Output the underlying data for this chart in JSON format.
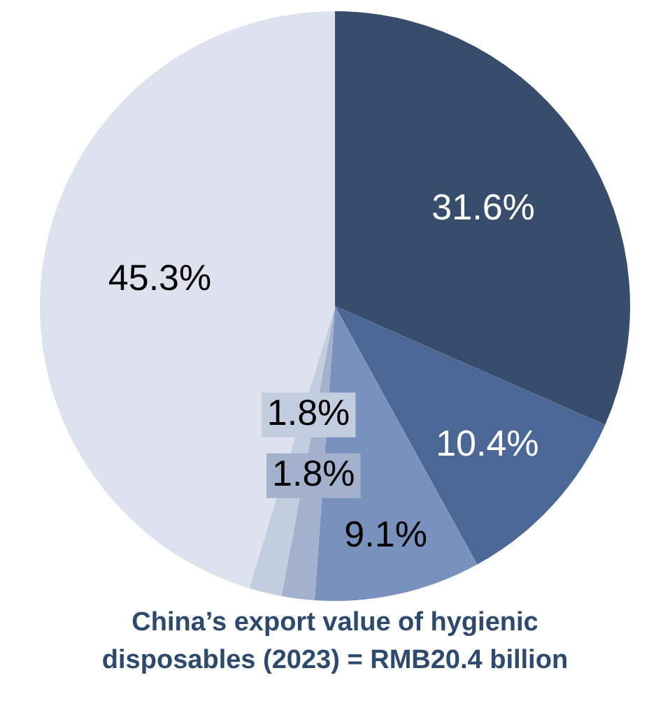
{
  "chart_data": {
    "type": "pie",
    "title": "China’s export value of hygienic disposables (2023) = RMB20.4 billion",
    "categories": [
      null,
      null,
      null,
      null,
      null,
      null
    ],
    "values": [
      31.6,
      10.4,
      9.1,
      1.8,
      1.8,
      45.3
    ],
    "colors": [
      "#384d6c",
      "#4a6795",
      "#7891bd",
      "#a3b1cc",
      "#c3cde0",
      "#dde2ee"
    ],
    "value_labels": [
      "31.6%",
      "10.4%",
      "9.1%",
      "1.8%",
      "1.8%",
      "45.3%"
    ],
    "legend": false
  }
}
